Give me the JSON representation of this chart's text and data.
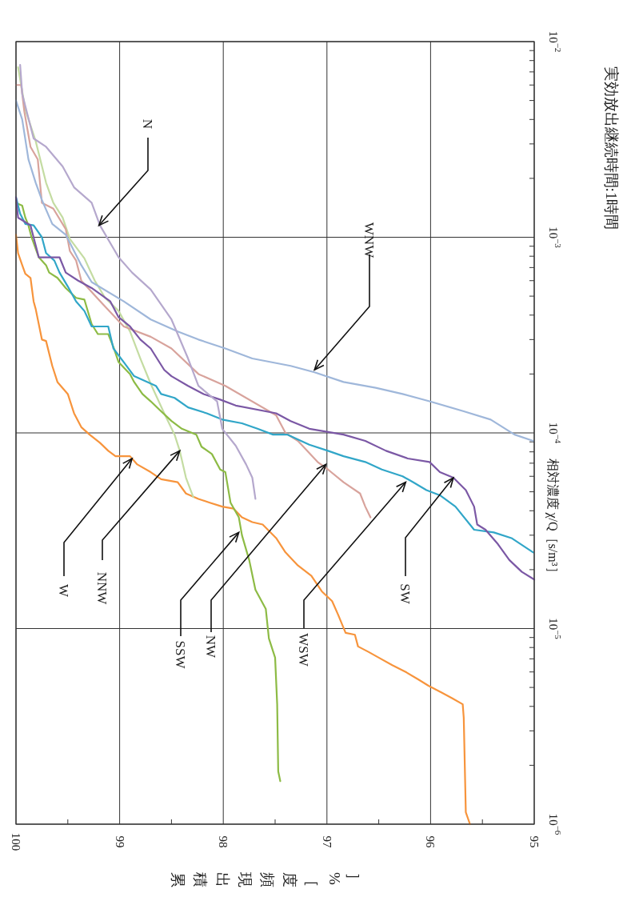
{
  "chart_data": {
    "type": "line",
    "title": "実効放出継続時間:1時間",
    "xlabel": "累積出現頻度［%］",
    "ylabel": "相対濃度 χ/Q［s/m³］",
    "log": "y",
    "grid": true,
    "xlim": [
      100,
      95
    ],
    "ylim": [
      1e-06,
      0.01
    ],
    "yticks": [
      {
        "value": 1e-06,
        "label": "10$^{−6}$"
      },
      {
        "value": 2e-06,
        "label": null
      },
      {
        "value": 3e-06,
        "label": null
      },
      {
        "value": 4e-06,
        "label": null
      },
      {
        "value": 5e-06,
        "label": null
      },
      {
        "value": 6e-06,
        "label": null
      },
      {
        "value": 7e-06,
        "label": null
      },
      {
        "value": 8e-06,
        "label": null
      },
      {
        "value": 9e-06,
        "label": null
      },
      {
        "value": 1e-05,
        "label": "10$^{−5}$"
      },
      {
        "value": 2e-05,
        "label": null
      },
      {
        "value": 3e-05,
        "label": null
      },
      {
        "value": 4e-05,
        "label": null
      },
      {
        "value": 5e-05,
        "label": null
      },
      {
        "value": 6e-05,
        "label": null
      },
      {
        "value": 7e-05,
        "label": null
      },
      {
        "value": 8e-05,
        "label": null
      },
      {
        "value": 9e-05,
        "label": null
      },
      {
        "value": 0.0001,
        "label": "10$^{−4}$"
      },
      {
        "value": 0.0002,
        "label": null
      },
      {
        "value": 0.0003,
        "label": null
      },
      {
        "value": 0.0004,
        "label": null
      },
      {
        "value": 0.0005,
        "label": null
      },
      {
        "value": 0.0006,
        "label": null
      },
      {
        "value": 0.0007,
        "label": null
      },
      {
        "value": 0.0008,
        "label": null
      },
      {
        "value": 0.0009,
        "label": null
      },
      {
        "value": 0.001,
        "label": "10$^{−3}$"
      },
      {
        "value": 0.002,
        "label": null
      },
      {
        "value": 0.003,
        "label": null
      },
      {
        "value": 0.004,
        "label": null
      },
      {
        "value": 0.005,
        "label": null
      },
      {
        "value": 0.006,
        "label": null
      },
      {
        "value": 0.007,
        "label": null
      },
      {
        "value": 0.008,
        "label": null
      },
      {
        "value": 0.009,
        "label": null
      },
      {
        "value": 0.01,
        "label": "10$^{−2}$"
      }
    ],
    "xticks": [
      95,
      {
        "value": 95.5,
        "label": null
      },
      96,
      {
        "value": 96.5,
        "label": null
      },
      97,
      {
        "value": 97.5,
        "label": null
      },
      98,
      {
        "value": 98.5,
        "label": null
      },
      99,
      {
        "value": 99.5,
        "label": null
      },
      100
    ],
    "series": [
      {
        "color": "#f7943c",
        "values": [
          0.00103,
          0.00083,
          0.00072,
          0.00065,
          0.00062,
          0.00047,
          0.00043,
          0.0003,
          0.000295,
          0.00022,
          0.000182,
          0.000158,
          0.000126,
          0.000107,
          9.8e-05,
          8.9e-05,
          8.1e-05,
          7.6e-05,
          7.6e-05,
          6.9e-05,
          6.3e-05,
          5.8e-05,
          5.6e-05,
          4.9e-05,
          4.6e-05,
          4.4e-05,
          4.2e-05,
          4.1e-05,
          3.7e-05,
          3.5e-05,
          3.4e-05,
          2.9e-05,
          2.45e-05,
          2.1e-05,
          1.86e-05,
          1.55e-05,
          1.38e-05,
          1.17e-05,
          9.5e-06,
          9.3e-06,
          8.1e-06,
          7.6e-06,
          7.1e-06,
          6.5e-06,
          6e-06,
          5.5e-06,
          5.1e-06,
          4.7e-06,
          4.4e-06,
          4.1e-06,
          3.5e-06,
          1.15e-06,
          1e-06
        ],
        "x": [
          100,
          99.98,
          99.94,
          99.91,
          99.86,
          99.83,
          99.81,
          99.75,
          99.71,
          99.65,
          99.6,
          99.5,
          99.44,
          99.37,
          99.29,
          99.19,
          99.11,
          99.04,
          98.9,
          98.83,
          98.7,
          98.6,
          98.44,
          98.36,
          98.24,
          98.13,
          98.01,
          97.9,
          97.82,
          97.72,
          97.62,
          97.49,
          97.4,
          97.28,
          97.15,
          97.05,
          96.95,
          96.89,
          96.82,
          96.73,
          96.7,
          96.6,
          96.5,
          96.37,
          96.24,
          96.12,
          96.02,
          95.89,
          95.79,
          95.69,
          95.68,
          95.66,
          95.62
        ]
      },
      {
        "color": "#c4dca2",
        "values": [
          0.0074,
          0.0045,
          0.0031,
          0.0019,
          0.0015,
          0.00126,
          0.00098,
          0.00078,
          0.0006,
          0.00049,
          0.00042,
          0.00033,
          0.00024,
          0.000178,
          0.000126,
          9.8e-05,
          8.1e-05,
          5.9e-05,
          4.7e-05
        ],
        "x": [
          99.98,
          99.91,
          99.81,
          99.71,
          99.64,
          99.55,
          99.48,
          99.34,
          99.24,
          99.14,
          99.01,
          98.9,
          98.8,
          98.7,
          98.57,
          98.47,
          98.42,
          98.36,
          98.29
        ]
      },
      {
        "color": "#8dbb45",
        "values": [
          0.0015,
          0.00145,
          0.00126,
          0.00115,
          0.001,
          0.00079,
          0.00072,
          0.00066,
          0.00062,
          0.00055,
          0.00049,
          0.00048,
          0.00036,
          0.00032,
          0.00032,
          0.000275,
          0.00023,
          0.0002,
          0.000182,
          0.000158,
          0.000145,
          0.000129,
          0.000115,
          0.000105,
          9.8e-05,
          8.5e-05,
          7.8e-05,
          6.5e-05,
          6.3e-05,
          4.4e-05,
          3.7e-05,
          3e-05,
          2.24e-05,
          1.58e-05,
          1.26e-05,
          8.9e-06,
          7.1e-06,
          4.1e-06,
          1.86e-06,
          1.66e-06
        ],
        "x": [
          100,
          99.94,
          99.91,
          99.88,
          99.85,
          99.78,
          99.71,
          99.68,
          99.6,
          99.52,
          99.42,
          99.34,
          99.27,
          99.21,
          99.11,
          99.06,
          99.01,
          98.9,
          98.86,
          98.78,
          98.7,
          98.6,
          98.5,
          98.4,
          98.26,
          98.21,
          98.11,
          98.03,
          97.98,
          97.93,
          97.85,
          97.82,
          97.75,
          97.69,
          97.59,
          97.56,
          97.5,
          97.48,
          97.47,
          97.45
        ]
      },
      {
        "color": "#d8a39c",
        "values": [
          0.006,
          0.006,
          0.0044,
          0.0029,
          0.0025,
          0.0015,
          0.0014,
          0.0011,
          0.00085,
          0.00076,
          0.0006,
          0.00046,
          0.00035,
          0.00031,
          0.00027,
          0.0002,
          0.000174,
          0.000123,
          0.0001,
          9.1e-05,
          7.1e-05,
          6.5e-05,
          5.6e-05,
          4.9e-05,
          4.2e-05,
          3.7e-05
        ],
        "x": [
          100,
          99.95,
          99.92,
          99.86,
          99.79,
          99.75,
          99.64,
          99.52,
          99.48,
          99.42,
          99.37,
          99.17,
          98.96,
          98.7,
          98.5,
          98.24,
          97.98,
          97.49,
          97.4,
          97.28,
          97.09,
          96.99,
          96.84,
          96.68,
          96.63,
          96.58
        ]
      },
      {
        "color": "#31a6c8",
        "values": [
          0.0016,
          0.00132,
          0.00117,
          0.00115,
          0.001,
          0.00083,
          0.00076,
          0.00066,
          0.00056,
          0.00047,
          0.00042,
          0.00035,
          0.00035,
          0.00027,
          0.00023,
          0.000195,
          0.000174,
          0.000158,
          0.000151,
          0.000135,
          0.000126,
          0.000117,
          0.000112,
          0.000105,
          9.8e-05,
          9.8e-05,
          8.7e-05,
          8.1e-05,
          7.6e-05,
          7.1e-05,
          6.5e-05,
          6e-05,
          5.6e-05,
          5.1e-05,
          4.8e-05,
          4.2e-05,
          3.2e-05,
          3.1e-05,
          2.9e-05,
          2.45e-05
        ],
        "x": [
          100,
          99.96,
          99.91,
          99.83,
          99.75,
          99.71,
          99.63,
          99.58,
          99.5,
          99.42,
          99.34,
          99.27,
          99.11,
          99.06,
          98.96,
          98.86,
          98.65,
          98.6,
          98.47,
          98.34,
          98.16,
          98.01,
          97.82,
          97.67,
          97.52,
          97.38,
          97.17,
          96.99,
          96.84,
          96.63,
          96.47,
          96.27,
          96.17,
          96.04,
          95.91,
          95.76,
          95.58,
          95.39,
          95.22,
          95.01
        ]
      },
      {
        "color": "#7b58a5",
        "values": [
          0.0016,
          0.00126,
          0.00115,
          0.00079,
          0.00079,
          0.00066,
          0.0006,
          0.00055,
          0.00047,
          0.00039,
          0.00035,
          0.0003,
          0.00027,
          0.00021,
          0.000195,
          0.000174,
          0.000158,
          0.000148,
          0.000138,
          0.000126,
          0.000115,
          0.000105,
          9.8e-05,
          9.1e-05,
          8.1e-05,
          7.4e-05,
          7.1e-05,
          6.3e-05,
          5.9e-05,
          5.1e-05,
          4.2e-05,
          3.4e-05,
          3.2e-05,
          2.7e-05,
          2.24e-05,
          1.95e-05,
          1.78e-05
        ],
        "x": [
          100,
          99.98,
          99.86,
          99.78,
          99.58,
          99.52,
          99.4,
          99.27,
          99.09,
          99.01,
          98.9,
          98.8,
          98.7,
          98.57,
          98.5,
          98.34,
          98.19,
          98.03,
          97.88,
          97.49,
          97.35,
          97.17,
          96.84,
          96.63,
          96.43,
          96.22,
          96.01,
          95.91,
          95.78,
          95.66,
          95.58,
          95.55,
          95.47,
          95.35,
          95.24,
          95.12,
          95.0
        ]
      },
      {
        "color": "#9fb7da",
        "values": [
          0.005,
          0.004,
          0.0025,
          0.0019,
          0.00155,
          0.00117,
          0.00103,
          0.00072,
          0.00059,
          0.00047,
          0.00038,
          0.00033,
          0.0003,
          0.00027,
          0.00024,
          0.00022,
          0.000204,
          0.000182,
          0.00017,
          0.000158,
          0.000145,
          0.000129,
          0.000117,
          9.8e-05,
          9.1e-05
        ],
        "x": [
          100,
          99.94,
          99.88,
          99.81,
          99.75,
          99.65,
          99.52,
          99.37,
          99.27,
          98.96,
          98.7,
          98.44,
          98.24,
          97.98,
          97.72,
          97.35,
          97.12,
          96.84,
          96.53,
          96.27,
          96.01,
          95.68,
          95.42,
          95.19,
          95.01
        ]
      },
      {
        "color": "#b5a8cd",
        "values": [
          0.0076,
          0.0054,
          0.0032,
          0.0029,
          0.0023,
          0.0018,
          0.0015,
          0.00115,
          0.00079,
          0.00066,
          0.00054,
          0.00038,
          0.00032,
          0.00024,
          0.000174,
          0.000145,
          0.000105,
          8.6e-05,
          6.9e-05,
          5.9e-05,
          4.6e-05
        ],
        "x": [
          99.96,
          99.94,
          99.83,
          99.71,
          99.55,
          99.44,
          99.27,
          99.19,
          99.01,
          98.88,
          98.7,
          98.5,
          98.44,
          98.34,
          98.24,
          98.06,
          98.01,
          97.88,
          97.78,
          97.72,
          97.69
        ]
      }
    ],
    "annotations": [
      {
        "text": "N",
        "y": 0.00115,
        "x": 99.2
      },
      {
        "text": "WNW",
        "y": 0.00021,
        "x": 97.12
      },
      {
        "text": "W",
        "y": 7.4e-05,
        "x": 98.88
      },
      {
        "text": "NNW",
        "y": 8.1e-05,
        "x": 98.42
      },
      {
        "text": "SSW",
        "y": 3.1e-05,
        "x": 97.85
      },
      {
        "text": "NW",
        "y": 6.9e-05,
        "x": 97.01
      },
      {
        "text": "WSW",
        "y": 5.6e-05,
        "x": 96.24
      },
      {
        "text": "SW",
        "y": 5.9e-05,
        "x": 95.78
      }
    ]
  }
}
